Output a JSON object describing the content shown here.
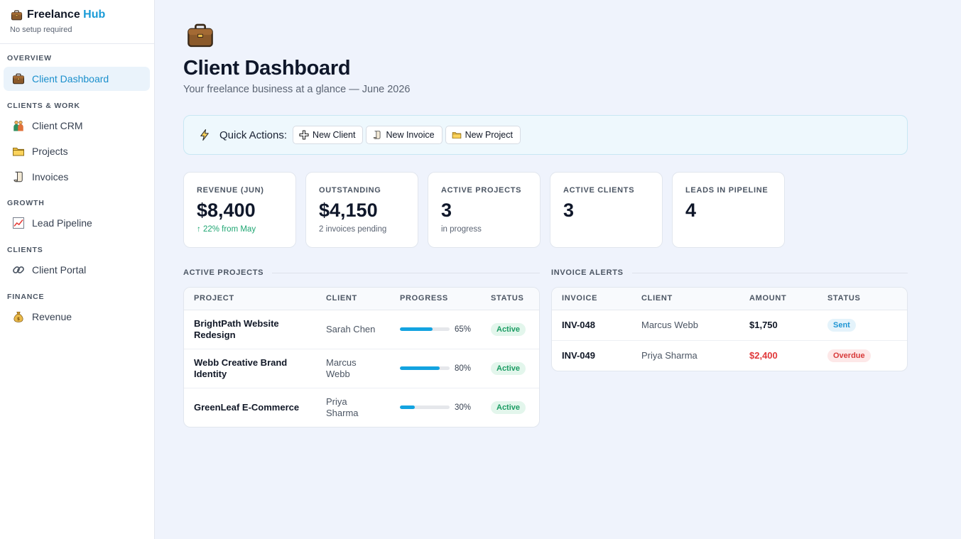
{
  "brand": {
    "name": "Freelance",
    "accent": "Hub",
    "subtitle": "No setup required",
    "icon": "briefcase-icon"
  },
  "nav": [
    {
      "section": "OVERVIEW",
      "items": [
        {
          "label": "Client Dashboard",
          "icon": "briefcase-icon",
          "active": true
        }
      ]
    },
    {
      "section": "CLIENTS & WORK",
      "items": [
        {
          "label": "Client CRM",
          "icon": "people-icon"
        },
        {
          "label": "Projects",
          "icon": "folder-icon"
        },
        {
          "label": "Invoices",
          "icon": "scroll-icon"
        }
      ]
    },
    {
      "section": "GROWTH",
      "items": [
        {
          "label": "Lead Pipeline",
          "icon": "chart-up-icon"
        }
      ]
    },
    {
      "section": "CLIENTS",
      "items": [
        {
          "label": "Client Portal",
          "icon": "link-icon"
        }
      ]
    },
    {
      "section": "FINANCE",
      "items": [
        {
          "label": "Revenue",
          "icon": "money-bag-icon"
        }
      ]
    }
  ],
  "page": {
    "title": "Client Dashboard",
    "subtitle": "Your freelance business at a glance — June 2026",
    "icon": "briefcase-icon"
  },
  "quick_actions": {
    "label": "Quick Actions:",
    "icon": "lightning-icon",
    "buttons": [
      {
        "label": "New Client",
        "icon": "plus-icon"
      },
      {
        "label": "New Invoice",
        "icon": "scroll-icon"
      },
      {
        "label": "New Project",
        "icon": "folder-icon"
      }
    ]
  },
  "stats": [
    {
      "label": "REVENUE (JUN)",
      "value": "$8,400",
      "note": "↑ 22% from May",
      "trend": "up"
    },
    {
      "label": "OUTSTANDING",
      "value": "$4,150",
      "note": "2 invoices pending"
    },
    {
      "label": "ACTIVE PROJECTS",
      "value": "3",
      "note": "in progress"
    },
    {
      "label": "ACTIVE CLIENTS",
      "value": "3",
      "note": ""
    },
    {
      "label": "LEADS IN PIPELINE",
      "value": "4",
      "note": ""
    }
  ],
  "projects": {
    "title": "ACTIVE PROJECTS",
    "columns": [
      "PROJECT",
      "CLIENT",
      "PROGRESS",
      "STATUS"
    ],
    "rows": [
      {
        "project": "BrightPath Website Redesign",
        "client": "Sarah Chen",
        "progress": 65,
        "progress_label": "65%",
        "status": "Active"
      },
      {
        "project": "Webb Creative Brand Identity",
        "client": "Marcus Webb",
        "progress": 80,
        "progress_label": "80%",
        "status": "Active"
      },
      {
        "project": "GreenLeaf E-Commerce",
        "client": "Priya Sharma",
        "progress": 30,
        "progress_label": "30%",
        "status": "Active"
      }
    ]
  },
  "invoices": {
    "title": "INVOICE ALERTS",
    "columns": [
      "INVOICE",
      "CLIENT",
      "AMOUNT",
      "STATUS"
    ],
    "rows": [
      {
        "invoice": "INV-048",
        "client": "Marcus Webb",
        "amount": "$1,750",
        "status": "Sent"
      },
      {
        "invoice": "INV-049",
        "client": "Priya Sharma",
        "amount": "$2,400",
        "status": "Overdue"
      }
    ]
  },
  "colors": {
    "accent": "#1a9bd7",
    "active_badge": "#1b9c63",
    "overdue": "#e0383a",
    "progress": "#13a3e0"
  }
}
